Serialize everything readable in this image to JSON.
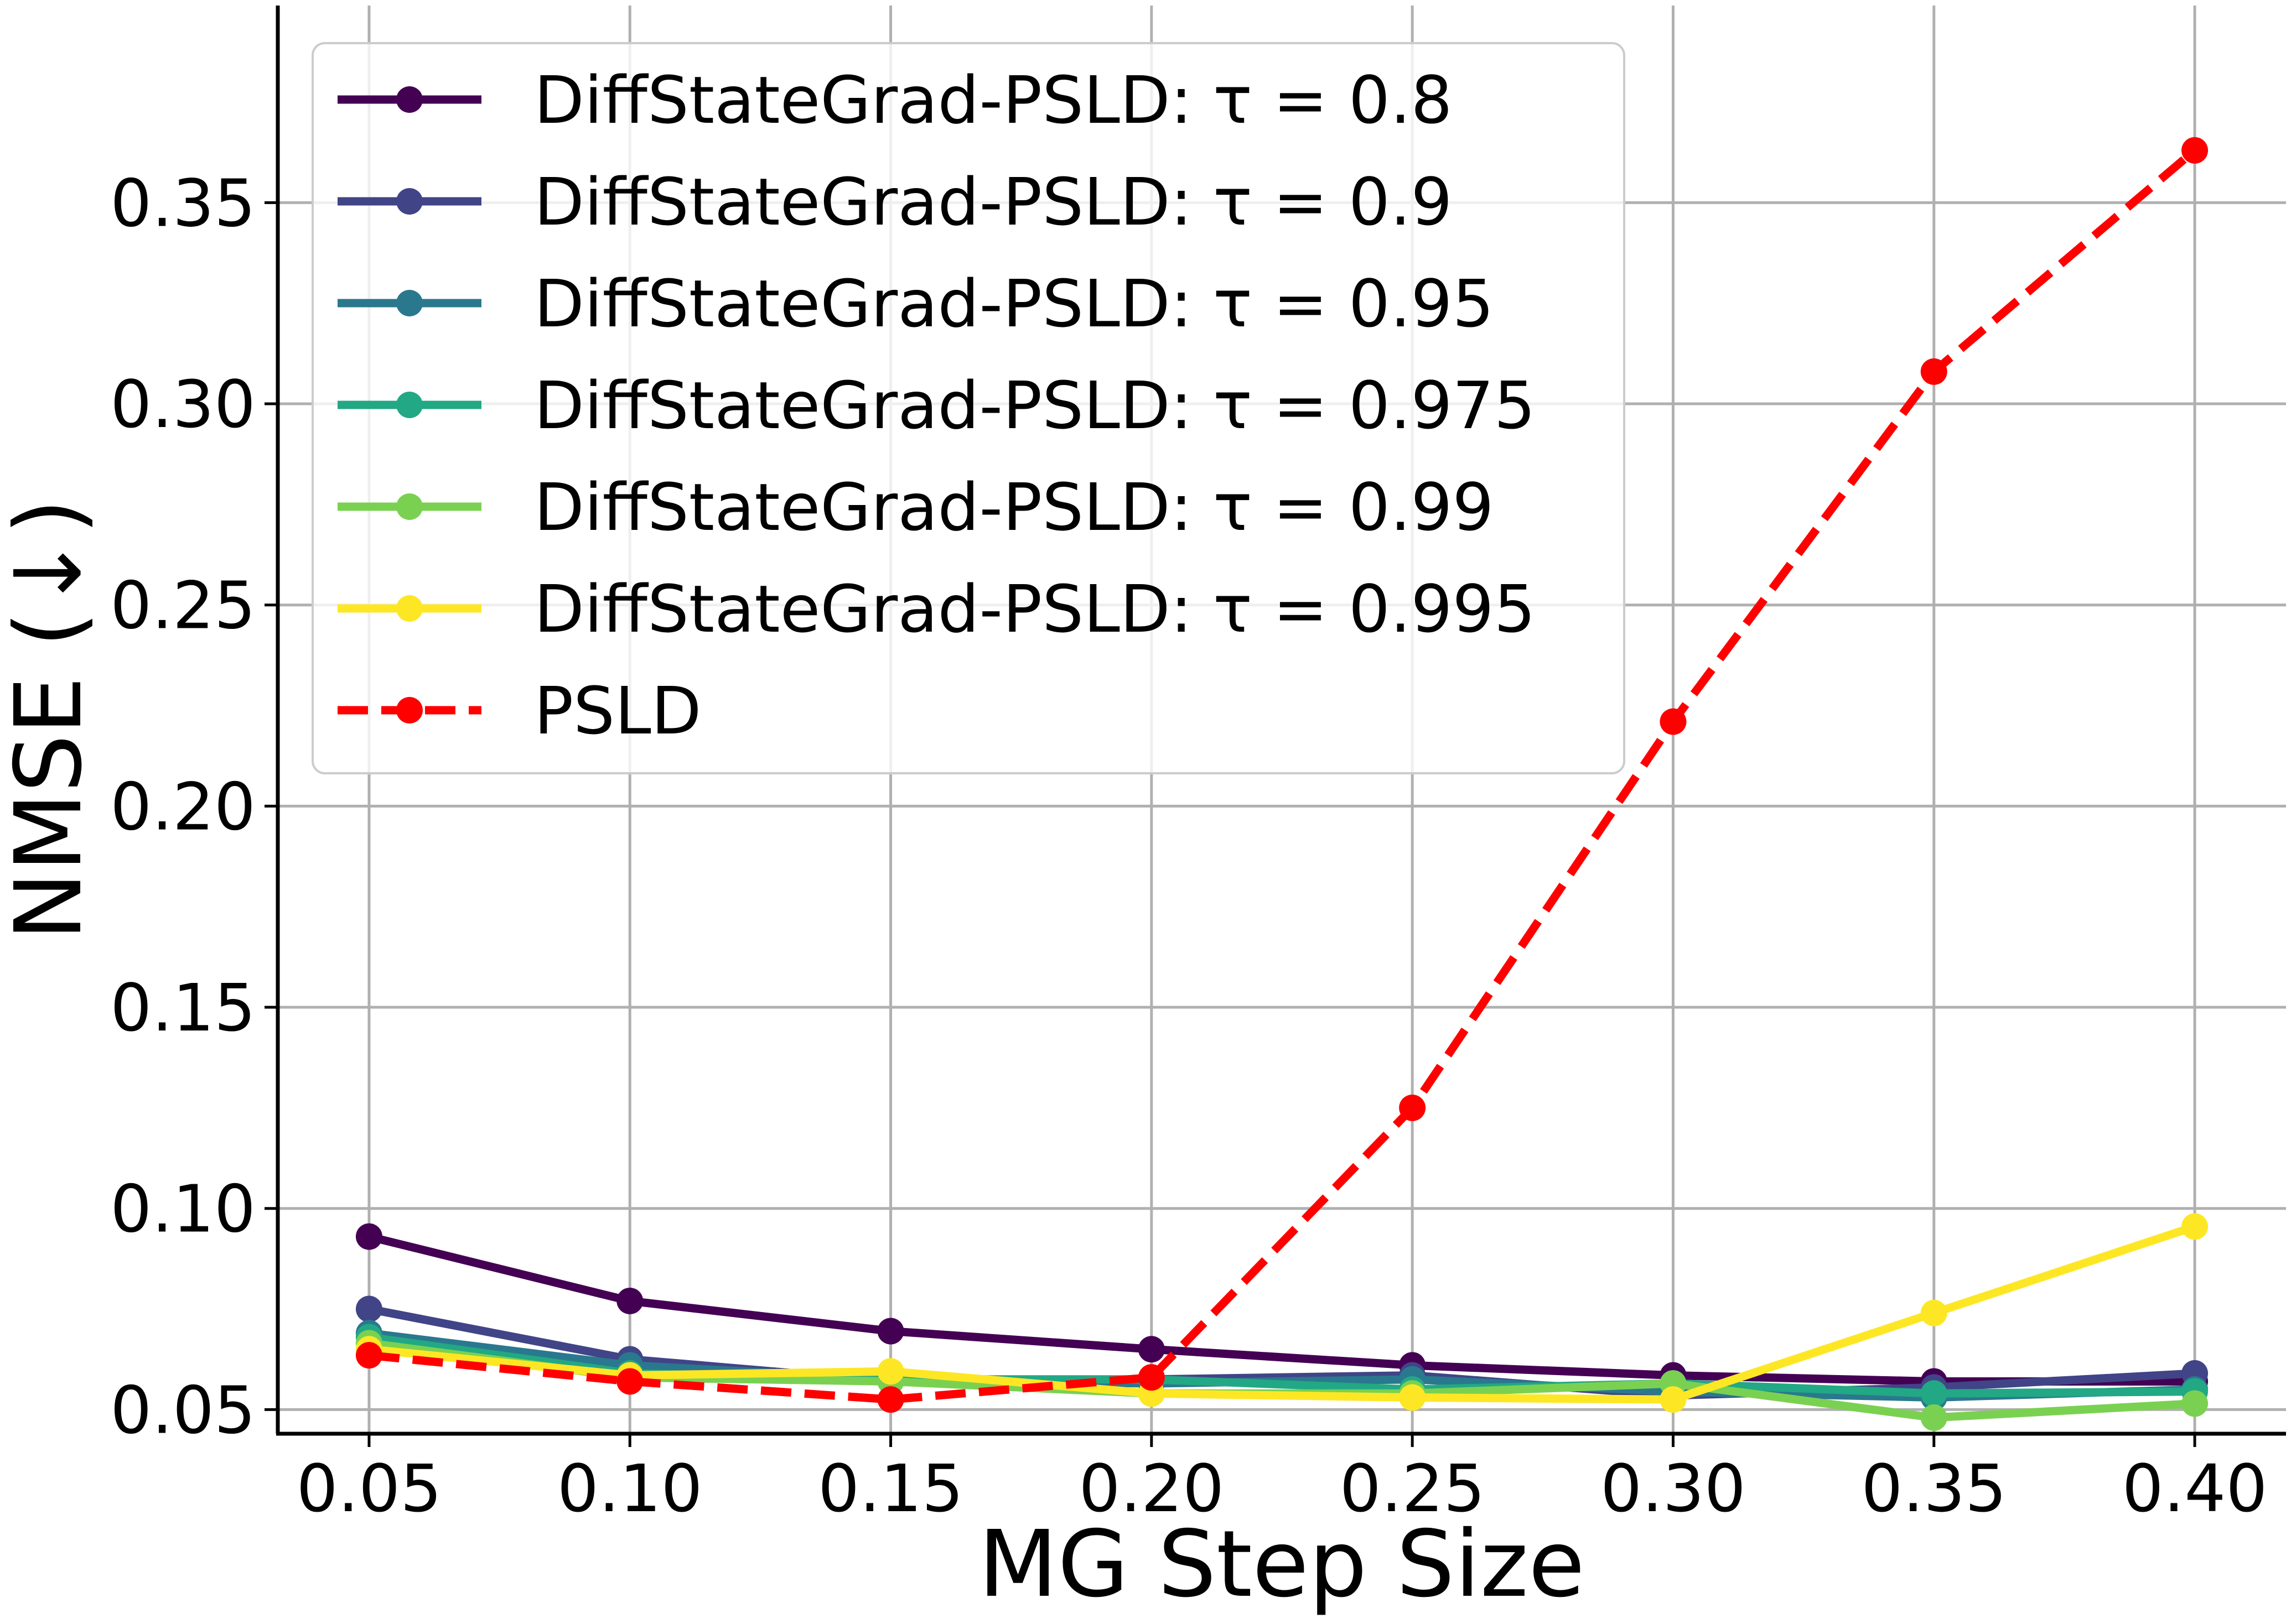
{
  "chart_data": {
    "type": "line",
    "title": "",
    "xlabel": "MG Step Size",
    "ylabel": "NMSE (↓)",
    "x": [
      0.05,
      0.1,
      0.15,
      0.2,
      0.25,
      0.3,
      0.35,
      0.4
    ],
    "x_tick_labels": [
      "0.05",
      "0.10",
      "0.15",
      "0.20",
      "0.25",
      "0.30",
      "0.35",
      "0.40"
    ],
    "y_ticks": [
      0.05,
      0.1,
      0.15,
      0.2,
      0.25,
      0.3,
      0.35
    ],
    "y_tick_labels": [
      "0.05",
      "0.10",
      "0.15",
      "0.20",
      "0.25",
      "0.30",
      "0.35"
    ],
    "xlim": [
      0.0325,
      0.4175
    ],
    "ylim": [
      0.044,
      0.399
    ],
    "grid": true,
    "legend_position": "top-left",
    "series": [
      {
        "name": "DiffStateGrad-PSLD: τ = 0.8",
        "color": "#440154",
        "dashed": false,
        "values": [
          0.093,
          0.077,
          0.0695,
          0.065,
          0.061,
          0.0585,
          0.057,
          0.057
        ]
      },
      {
        "name": "DiffStateGrad-PSLD: τ = 0.9",
        "color": "#414487",
        "dashed": false,
        "values": [
          0.075,
          0.0625,
          0.057,
          0.0575,
          0.0585,
          0.0535,
          0.0555,
          0.059
        ]
      },
      {
        "name": "DiffStateGrad-PSLD: τ = 0.95",
        "color": "#2a788e",
        "dashed": false,
        "values": [
          0.069,
          0.061,
          0.0575,
          0.0565,
          0.0575,
          0.0545,
          0.053,
          0.055
        ]
      },
      {
        "name": "DiffStateGrad-PSLD: τ = 0.975",
        "color": "#22a884",
        "dashed": false,
        "values": [
          0.068,
          0.059,
          0.0575,
          0.0575,
          0.055,
          0.0565,
          0.054,
          0.0545
        ]
      },
      {
        "name": "DiffStateGrad-PSLD: τ = 0.99",
        "color": "#7ad151",
        "dashed": false,
        "values": [
          0.0665,
          0.058,
          0.057,
          0.054,
          0.054,
          0.0565,
          0.048,
          0.0515
        ]
      },
      {
        "name": "DiffStateGrad-PSLD: τ = 0.995",
        "color": "#fde725",
        "dashed": false,
        "values": [
          0.065,
          0.0585,
          0.0595,
          0.054,
          0.053,
          0.0525,
          0.074,
          0.0955
        ]
      },
      {
        "name": "PSLD",
        "color": "#ff0000",
        "dashed": true,
        "values": [
          0.0635,
          0.057,
          0.0525,
          0.058,
          0.125,
          0.221,
          0.308,
          0.363
        ]
      }
    ]
  }
}
